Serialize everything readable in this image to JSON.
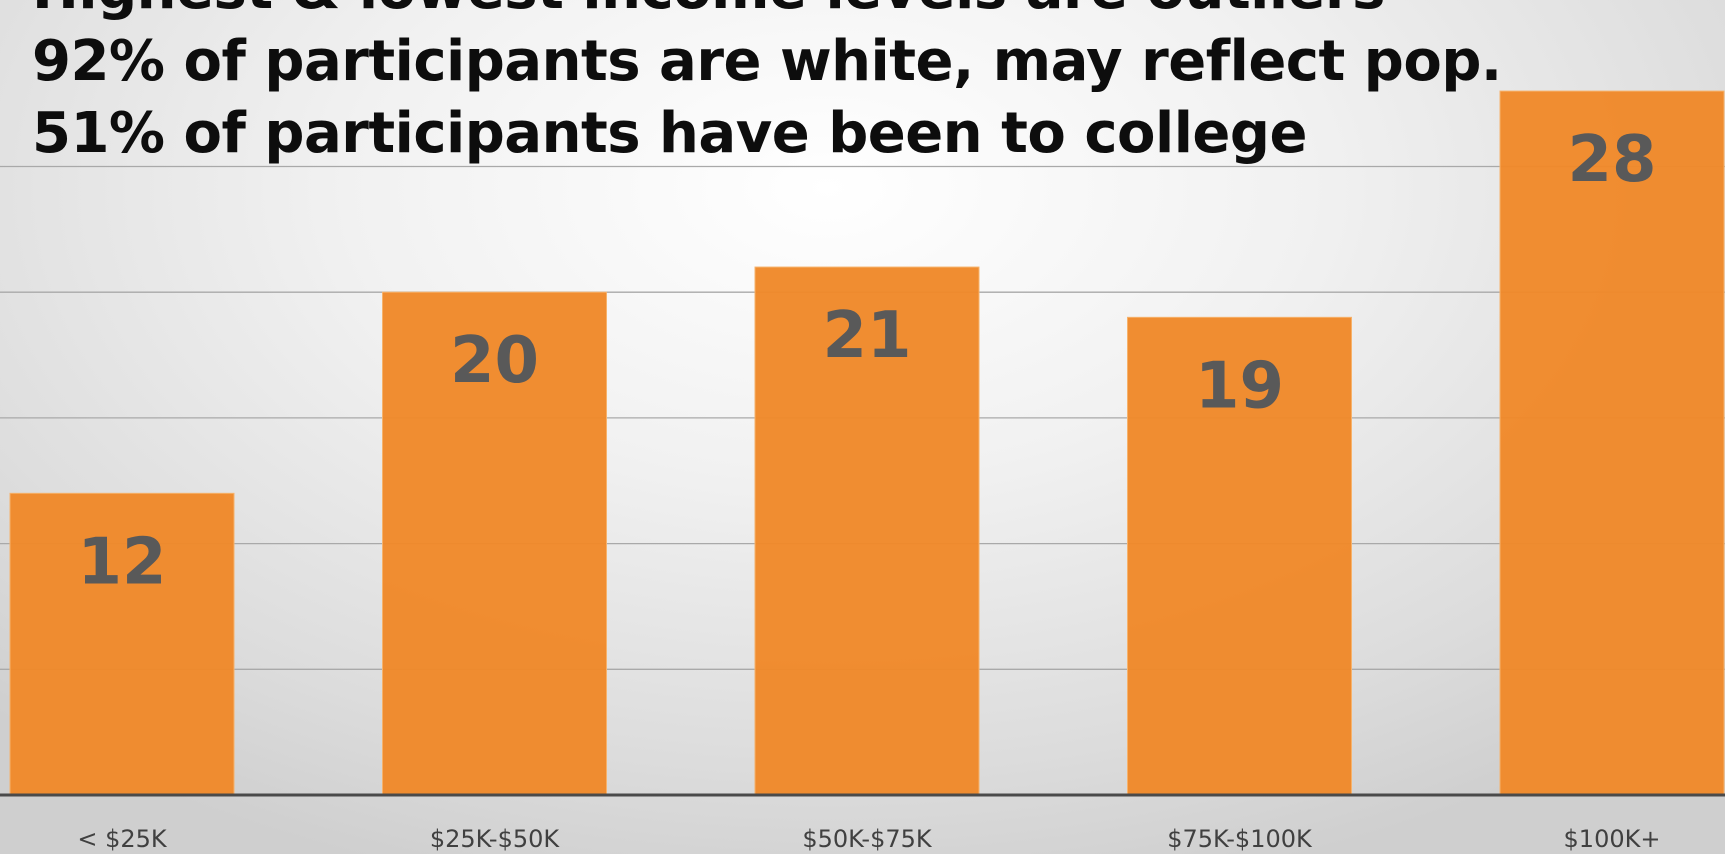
{
  "overlay_text": [
    "Highest & lowest income levels are outliers",
    "92% of participants are white, may reflect pop.",
    "51% of participants have been to college"
  ],
  "chart_data": {
    "type": "bar",
    "categories": [
      "< $25K",
      "$25K-$50K",
      "$50K-$75K",
      "$75K-$100K",
      "$100K+"
    ],
    "values": [
      12,
      20,
      21,
      19,
      28
    ],
    "title": "",
    "xlabel": "",
    "ylabel": "",
    "ylim": [
      0,
      28.3
    ],
    "grid": true,
    "bar_color": "#f0892a",
    "label_color": "#595959"
  }
}
